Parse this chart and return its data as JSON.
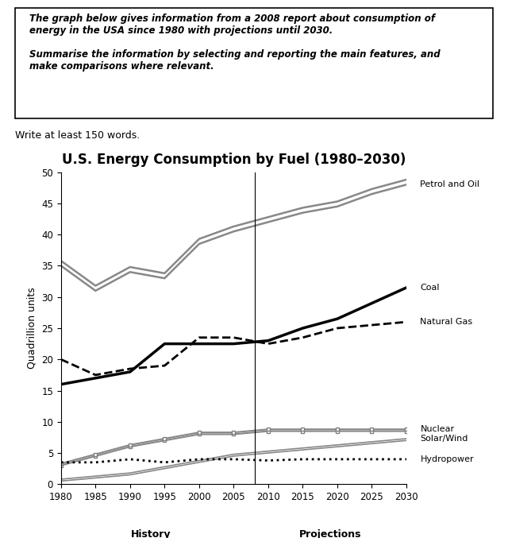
{
  "title": "U.S. Energy Consumption by Fuel (1980–2030)",
  "ylabel": "Quadrillion units",
  "xlabel_history": "History",
  "xlabel_projections": "Projections",
  "write_at_least": "Write at least 150 words.",
  "instruction_text": "The graph below gives information from a 2008 report about consumption of\nenergy in the USA since 1980 with projections until 2030.\n\nSummarise the information by selecting and reporting the main features, and\nmake comparisons where relevant.",
  "years": [
    1980,
    1985,
    1990,
    1995,
    2000,
    2005,
    2010,
    2015,
    2020,
    2025,
    2030
  ],
  "petrol_and_oil": [
    35.0,
    31.0,
    34.0,
    33.0,
    38.5,
    40.5,
    42.0,
    43.5,
    44.5,
    46.5,
    48.0
  ],
  "petrol_and_oil_upper": [
    35.8,
    31.8,
    34.8,
    33.8,
    39.3,
    41.3,
    42.8,
    44.3,
    45.3,
    47.3,
    48.8
  ],
  "coal": [
    16.0,
    17.0,
    18.0,
    22.5,
    22.5,
    22.5,
    23.0,
    25.0,
    26.5,
    29.0,
    31.5
  ],
  "natural_gas": [
    20.0,
    17.5,
    18.5,
    19.0,
    23.5,
    23.5,
    22.5,
    23.5,
    25.0,
    25.5,
    26.0
  ],
  "nuclear": [
    3.0,
    4.5,
    6.0,
    7.0,
    8.0,
    8.0,
    8.5,
    8.5,
    8.5,
    8.5,
    8.5
  ],
  "nuclear_upper": [
    3.3,
    4.8,
    6.3,
    7.3,
    8.3,
    8.3,
    8.8,
    8.8,
    8.8,
    8.8,
    8.8
  ],
  "solar_wind": [
    0.5,
    1.0,
    1.5,
    2.5,
    3.5,
    4.5,
    5.0,
    5.5,
    6.0,
    6.5,
    7.0
  ],
  "solar_wind_upper": [
    0.8,
    1.3,
    1.8,
    2.8,
    3.8,
    4.8,
    5.3,
    5.8,
    6.3,
    6.8,
    7.3
  ],
  "hydropower": [
    3.5,
    3.5,
    4.0,
    3.5,
    4.0,
    4.0,
    3.8,
    4.0,
    4.0,
    4.0,
    4.0
  ],
  "ylim": [
    0,
    50
  ],
  "yticks": [
    0,
    5,
    10,
    15,
    20,
    25,
    30,
    35,
    40,
    45,
    50
  ],
  "xticks": [
    1980,
    1985,
    1990,
    1995,
    2000,
    2005,
    2010,
    2015,
    2020,
    2025,
    2030
  ],
  "color_petrol": "#888888",
  "color_coal": "#000000",
  "color_natural_gas": "#000000",
  "color_nuclear": "#888888",
  "color_solar_wind": "#888888",
  "color_hydropower": "#000000"
}
